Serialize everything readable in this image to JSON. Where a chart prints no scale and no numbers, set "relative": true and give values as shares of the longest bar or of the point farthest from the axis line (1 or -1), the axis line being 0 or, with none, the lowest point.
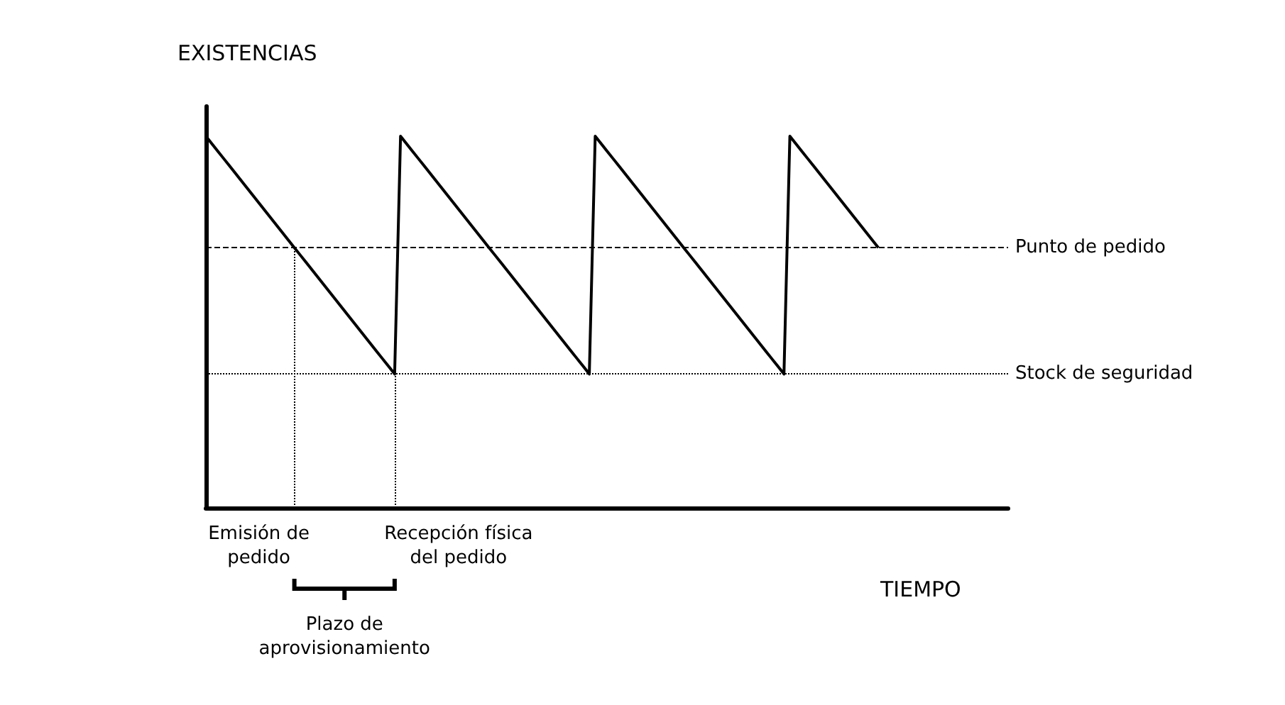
{
  "chart_data": {
    "type": "line",
    "relative": true,
    "xlabel": "TIEMPO",
    "ylabel": "EXISTENCIAS",
    "categories": [
      null,
      null,
      null,
      null,
      null,
      null,
      null,
      null,
      null,
      null,
      null,
      null,
      null,
      null,
      null,
      null,
      null,
      null,
      null,
      null,
      null,
      null,
      null,
      null,
      null,
      null,
      null,
      null,
      null,
      null,
      null,
      null,
      null,
      null,
      null,
      null,
      null,
      null,
      null,
      null,
      null,
      null,
      null,
      null,
      null,
      null,
      null,
      null,
      null,
      null,
      null,
      null,
      null,
      null,
      null,
      null,
      null,
      null,
      null,
      null,
      null,
      null,
      null,
      null,
      null,
      null,
      null,
      null,
      null,
      null,
      null,
      null,
      null,
      null,
      null,
      null,
      null,
      null,
      null,
      null,
      null,
      null,
      null,
      null,
      null,
      null,
      null,
      null,
      null,
      null,
      null,
      null,
      null,
      null,
      null,
      null,
      null,
      null,
      null,
      null,
      null,
      null,
      null,
      null,
      null,
      null,
      null,
      null,
      null,
      null,
      null,
      null,
      null,
      null,
      null,
      null,
      null,
      null,
      null,
      null,
      null,
      null,
      null,
      null,
      null,
      null,
      null,
      null,
      null,
      null,
      null,
      null,
      null,
      null,
      null,
      null,
      null
    ],
    "grid": false,
    "marker": "none",
    "line_style": "solid",
    "series": [
      {
        "color": "#000000",
        "values": [
          1,
          0.98,
          0.96,
          0.94,
          0.92,
          0.9,
          0.88,
          0.86,
          0.84,
          0.82,
          0.8,
          0.78,
          0.76,
          0.74,
          0.72,
          0.7,
          0.68,
          0.66,
          0.64,
          0.62,
          0.6,
          0.58,
          0.56,
          0.54,
          0.52,
          0.5,
          0.48,
          0.46,
          0.44,
          0.42,
          0.4,
          0.38,
          0.36,
          1,
          0.98,
          0.96,
          0.94,
          0.92,
          0.9,
          0.88,
          0.86,
          0.84,
          0.82,
          0.8,
          0.78,
          0.76,
          0.74,
          0.72,
          0.7,
          0.68,
          0.66,
          0.64,
          0.62,
          0.6,
          0.58,
          0.56,
          0.54,
          0.52,
          0.5,
          0.48,
          0.46,
          0.44,
          0.42,
          0.4,
          0.38,
          0.36,
          1,
          0.98,
          0.96,
          0.94,
          0.92,
          0.9,
          0.88,
          0.86,
          0.84,
          0.82,
          0.8,
          0.78,
          0.76,
          0.74,
          0.72,
          0.7,
          0.68,
          0.66,
          0.64,
          0.62,
          0.6,
          0.58,
          0.56,
          0.54,
          0.52,
          0.5,
          0.48,
          0.46,
          0.44,
          0.42,
          0.4,
          0.38,
          0.36,
          1,
          0.98,
          0.96,
          0.94,
          0.92,
          0.9,
          0.88,
          0.86,
          0.84,
          0.82,
          0.8,
          0.78,
          0.76,
          0.74,
          0.72,
          0.7,
          null,
          null,
          null,
          null,
          null,
          null,
          null,
          null,
          null,
          null,
          null,
          null,
          null,
          null,
          null,
          null,
          null,
          null,
          null,
          null,
          null,
          null
        ]
      }
    ],
    "ref_lines": [
      {
        "axis": "y",
        "value": 0.7,
        "label": "Punto de pedido",
        "line_style": "dashed",
        "color": "#000000"
      },
      {
        "axis": "y",
        "value": 0.36,
        "label": "Stock de seguridad",
        "line_style": "dotted",
        "color": "#000000"
      }
    ],
    "annotations": [
      "Emisión de\npedido",
      "Recepción física\ndel pedido",
      "Plazo de\naprovisionamiento"
    ]
  }
}
